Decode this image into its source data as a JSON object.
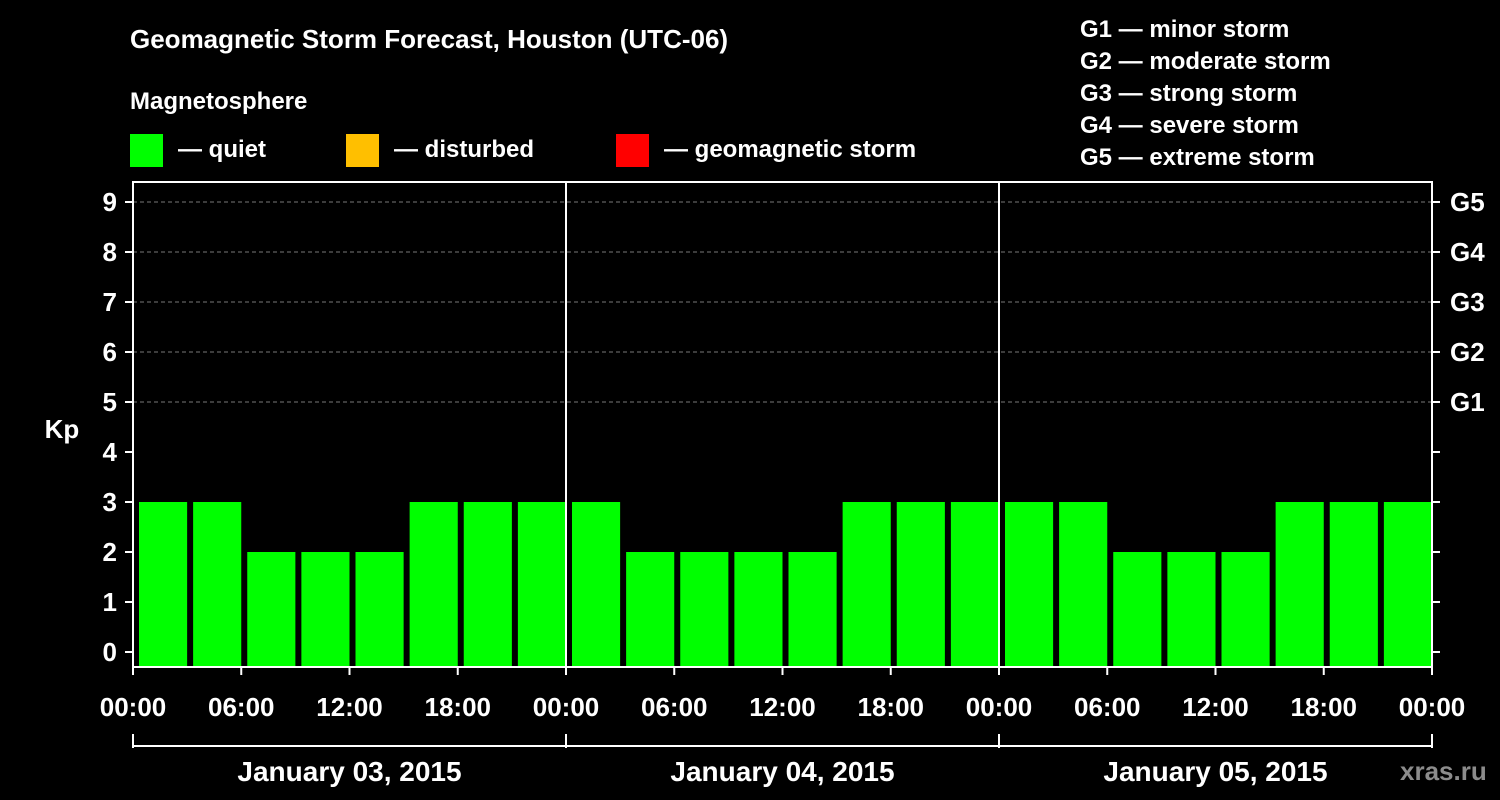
{
  "title": "Geomagnetic Storm Forecast, Houston (UTC-06)",
  "magnetosphere_label": "Magnetosphere",
  "legend": [
    {
      "label": "— quiet",
      "color": "#00ff00"
    },
    {
      "label": "— disturbed",
      "color": "#ffbf00"
    },
    {
      "label": "— geomagnetic storm",
      "color": "#ff0000"
    }
  ],
  "storm_scale": [
    "G1 — minor storm",
    "G2 — moderate storm",
    "G3 — strong storm",
    "G4 — severe storm",
    "G5 — extreme storm"
  ],
  "watermark": "xras.ru",
  "chart_data": {
    "type": "bar",
    "ylabel": "Kp",
    "ylim": [
      0,
      9
    ],
    "yticks": [
      "0",
      "1",
      "2",
      "3",
      "4",
      "5",
      "6",
      "7",
      "8",
      "9"
    ],
    "right_axis_labels": [
      {
        "kp": 5,
        "label": "G1"
      },
      {
        "kp": 6,
        "label": "G2"
      },
      {
        "kp": 7,
        "label": "G3"
      },
      {
        "kp": 8,
        "label": "G4"
      },
      {
        "kp": 9,
        "label": "G5"
      }
    ],
    "xtick_labels": [
      "00:00",
      "06:00",
      "12:00",
      "18:00",
      "00:00",
      "06:00",
      "12:00",
      "18:00",
      "00:00",
      "06:00",
      "12:00",
      "18:00",
      "00:00"
    ],
    "days": [
      "January 03, 2015",
      "January 04, 2015",
      "January 05, 2015"
    ],
    "interval_hours": 3,
    "values": [
      3,
      3,
      2,
      2,
      2,
      3,
      3,
      3,
      3,
      2,
      2,
      2,
      2,
      3,
      3,
      3,
      3,
      3,
      2,
      2,
      2,
      3,
      3,
      3
    ],
    "bar_color": "#00ff00",
    "grid": true
  }
}
